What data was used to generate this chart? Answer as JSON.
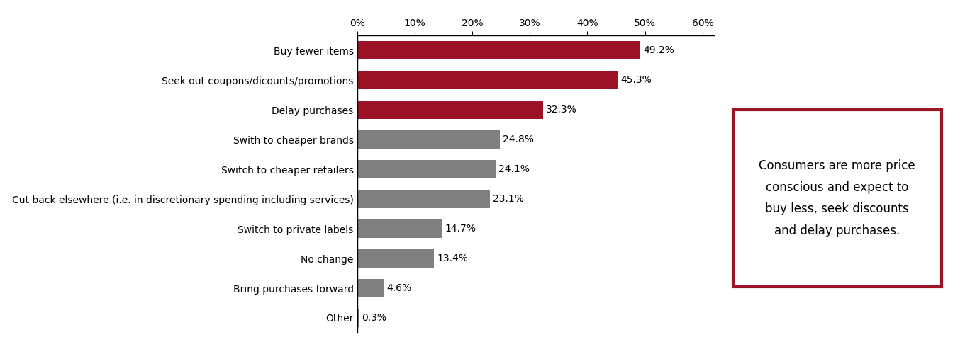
{
  "categories": [
    "Other",
    "Bring purchases forward",
    "No change",
    "Switch to private labels",
    "Cut back elsewhere (i.e. in discretionary spending including services)",
    "Switch to cheaper retailers",
    "Swith to cheaper brands",
    "Delay purchases",
    "Seek out coupons/dicounts/promotions",
    "Buy fewer items"
  ],
  "values": [
    0.3,
    4.6,
    13.4,
    14.7,
    23.1,
    24.1,
    24.8,
    32.3,
    45.3,
    49.2
  ],
  "colors": [
    "#808080",
    "#808080",
    "#808080",
    "#808080",
    "#808080",
    "#808080",
    "#808080",
    "#9b1325",
    "#9b1325",
    "#9b1325"
  ],
  "xlim": [
    0,
    62
  ],
  "xticks": [
    0,
    10,
    20,
    30,
    40,
    50,
    60
  ],
  "xtick_labels": [
    "0%",
    "10%",
    "20%",
    "30%",
    "40%",
    "50%",
    "60%"
  ],
  "annotation_box_text": "Consumers are more price\nconscious and expect to\nbuy less, seek discounts\nand delay purchases.",
  "annotation_box_color": "#9b1325",
  "bar_label_fontsize": 10,
  "tick_fontsize": 10,
  "category_fontsize": 10,
  "annot_fontsize": 12
}
